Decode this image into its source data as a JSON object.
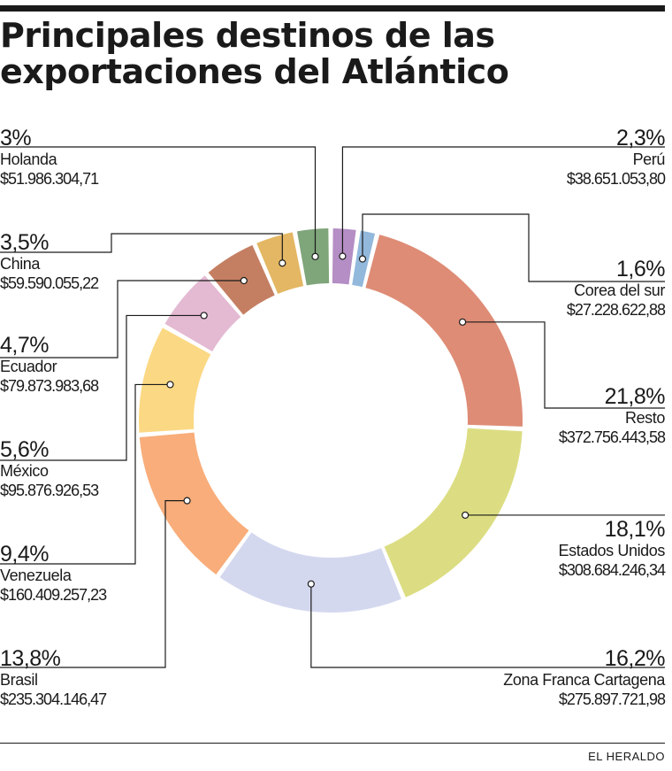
{
  "chart_data": {
    "type": "pie",
    "style": "donut",
    "title": "Principales destinos de las exportaciones del Atlántico",
    "slices": [
      {
        "name": "Perú",
        "percent": 2.3,
        "percent_label": "2,3%",
        "amount": "$38.651.053,80",
        "color": "#b48ec4"
      },
      {
        "name": "Corea del sur",
        "percent": 1.6,
        "percent_label": "1,6%",
        "amount": "$27.228.622,88",
        "color": "#92b8dc"
      },
      {
        "name": "Resto",
        "percent": 21.8,
        "percent_label": "21,8%",
        "amount": "$372.756.443,58",
        "color": "#de8c76"
      },
      {
        "name": "Estados Unidos",
        "percent": 18.1,
        "percent_label": "18,1%",
        "amount": "$308.684.246,34",
        "color": "#dcdd82"
      },
      {
        "name": "Zona Franca Cartagena",
        "percent": 16.2,
        "percent_label": "16,2%",
        "amount": "$275.897.721,98",
        "color": "#d4d8ef"
      },
      {
        "name": "Brasil",
        "percent": 13.8,
        "percent_label": "13,8%",
        "amount": "$235.304.146,47",
        "color": "#f8ad7a"
      },
      {
        "name": "Venezuela",
        "percent": 9.4,
        "percent_label": "9,4%",
        "amount": "$160.409.257,23",
        "color": "#fbd883"
      },
      {
        "name": "México",
        "percent": 5.6,
        "percent_label": "5,6%",
        "amount": "$95.876.926,53",
        "color": "#e4b9d2"
      },
      {
        "name": "Ecuador",
        "percent": 4.7,
        "percent_label": "4,7%",
        "amount": "$79.873.983,68",
        "color": "#c47f62"
      },
      {
        "name": "China",
        "percent": 3.5,
        "percent_label": "3,5%",
        "amount": "$59.590.055,22",
        "color": "#e3b763"
      },
      {
        "name": "Holanda",
        "percent": 3.0,
        "percent_label": "3%",
        "amount": "$51.986.304,71",
        "color": "#7fa57a"
      }
    ]
  },
  "credit": "EL HERALDO",
  "colors": {
    "text": "#1a1a1a",
    "background": "#ffffff"
  }
}
